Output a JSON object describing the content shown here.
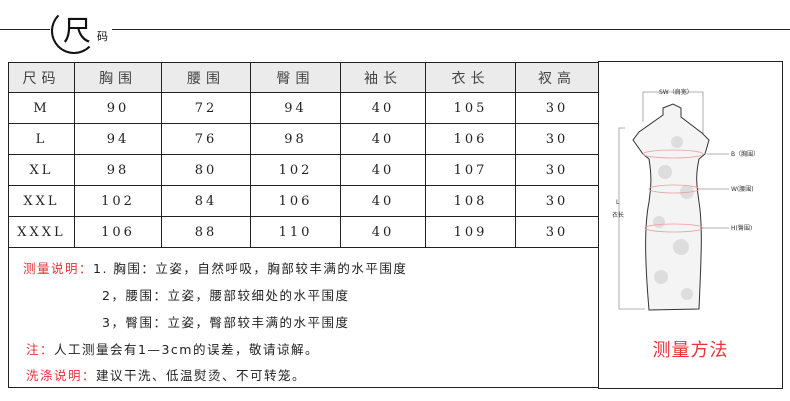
{
  "header": {
    "title_big": "尺",
    "title_small": "码"
  },
  "table": {
    "columns": [
      "尺码",
      "胸围",
      "腰围",
      "臀围",
      "袖长",
      "衣长",
      "衩高"
    ],
    "rows": [
      [
        "M",
        "90",
        "72",
        "94",
        "40",
        "105",
        "30"
      ],
      [
        "L",
        "94",
        "76",
        "98",
        "40",
        "106",
        "30"
      ],
      [
        "XL",
        "98",
        "80",
        "102",
        "40",
        "107",
        "30"
      ],
      [
        "XXL",
        "102",
        "84",
        "106",
        "40",
        "108",
        "30"
      ],
      [
        "XXXL",
        "106",
        "88",
        "110",
        "40",
        "109",
        "30"
      ]
    ]
  },
  "notes": {
    "measure_label": "测量说明：",
    "items": [
      "1. 胸围：立姿，自然呼吸，胸部较丰满的水平围度",
      "2，腰围：立姿，腰部较细处的水平围度",
      "3，臀围：立姿，臀部较丰满的水平围度"
    ],
    "note_label": "注：",
    "note_text": "人工测量会有1—3cm的误差，敬请谅解。",
    "wash_label": "洗涤说明：",
    "wash_text": "建议干洗、低温熨烫、不可转笼。"
  },
  "figure": {
    "title": "测量方法",
    "labels": {
      "sw": "SW（肩宽）",
      "b": "B（胸围）",
      "w": "W(腰围)",
      "h": "H(臀围)",
      "l": "L",
      "l_cn": "衣长"
    }
  },
  "colors": {
    "accent_red": "#e8333a",
    "header_bg": "#ebebeb"
  }
}
